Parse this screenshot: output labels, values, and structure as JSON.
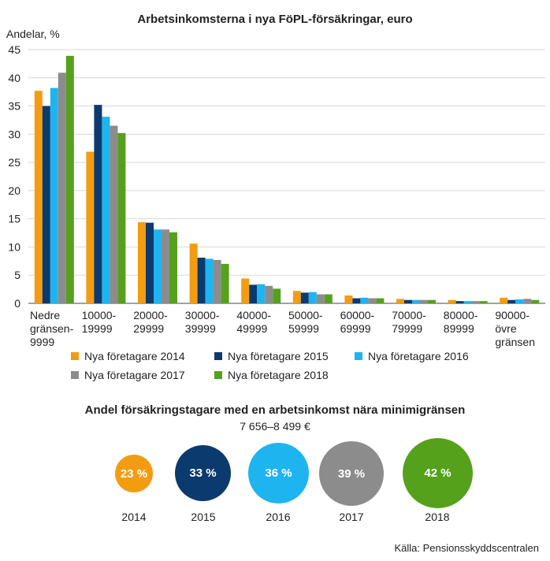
{
  "chart_data": {
    "type": "bar",
    "title": "Arbetsinkomsterna i nya FöPL-försäkringar, euro",
    "ylabel": "Andelar, %",
    "ylim": [
      0,
      45
    ],
    "yticks": [
      "0",
      "5",
      "10",
      "15",
      "20",
      "25",
      "30",
      "35",
      "40",
      "45"
    ],
    "grid": true,
    "legend_position": "bottom",
    "categories": [
      [
        "Nedre",
        "gränsen-",
        "9999"
      ],
      [
        "10000-",
        "19999"
      ],
      [
        "20000-",
        "29999"
      ],
      [
        "30000-",
        "39999"
      ],
      [
        "40000-",
        "49999"
      ],
      [
        "50000-",
        "59999"
      ],
      [
        "60000-",
        "69999"
      ],
      [
        "70000-",
        "79999"
      ],
      [
        "80000-",
        "89999"
      ],
      [
        "90000-",
        "övre",
        "gränsen"
      ]
    ],
    "series": [
      {
        "name": "Nya företagare 2014",
        "color": "#F39C12",
        "values": [
          37.7,
          26.9,
          14.4,
          10.6,
          4.4,
          2.2,
          1.4,
          0.8,
          0.6,
          1.0
        ]
      },
      {
        "name": "Nya företagare 2015",
        "color": "#0B3A6E",
        "values": [
          35.0,
          35.2,
          14.3,
          8.1,
          3.3,
          1.9,
          0.9,
          0.6,
          0.4,
          0.6
        ]
      },
      {
        "name": "Nya företagare 2016",
        "color": "#1EB4F0",
        "values": [
          38.2,
          33.1,
          13.1,
          7.9,
          3.4,
          2.0,
          1.0,
          0.6,
          0.4,
          0.7
        ]
      },
      {
        "name": "Nya företagare 2017",
        "color": "#8C8C8C",
        "values": [
          40.9,
          31.5,
          13.1,
          7.7,
          3.1,
          1.6,
          0.9,
          0.6,
          0.4,
          0.8
        ]
      },
      {
        "name": "Nya företagare 2018",
        "color": "#55A11C",
        "values": [
          43.9,
          30.2,
          12.6,
          7.0,
          2.6,
          1.6,
          0.9,
          0.6,
          0.4,
          0.6
        ]
      }
    ]
  },
  "minimum_share": {
    "title": "Andel försäkringstagare med en arbetsinkomst nära minimigränsen",
    "range": "7 656–8 499 €",
    "bubbles": [
      {
        "year": "2014",
        "label": "23 %",
        "value": 23,
        "color": "#F39C12"
      },
      {
        "year": "2015",
        "label": "33 %",
        "value": 33,
        "color": "#0B3A6E"
      },
      {
        "year": "2016",
        "label": "36 %",
        "value": 36,
        "color": "#1EB4F0"
      },
      {
        "year": "2017",
        "label": "39 %",
        "value": 39,
        "color": "#8C8C8C"
      },
      {
        "year": "2018",
        "label": "42 %",
        "value": 42,
        "color": "#55A11C"
      }
    ]
  },
  "source": "Källa: Pensionsskyddscentralen"
}
